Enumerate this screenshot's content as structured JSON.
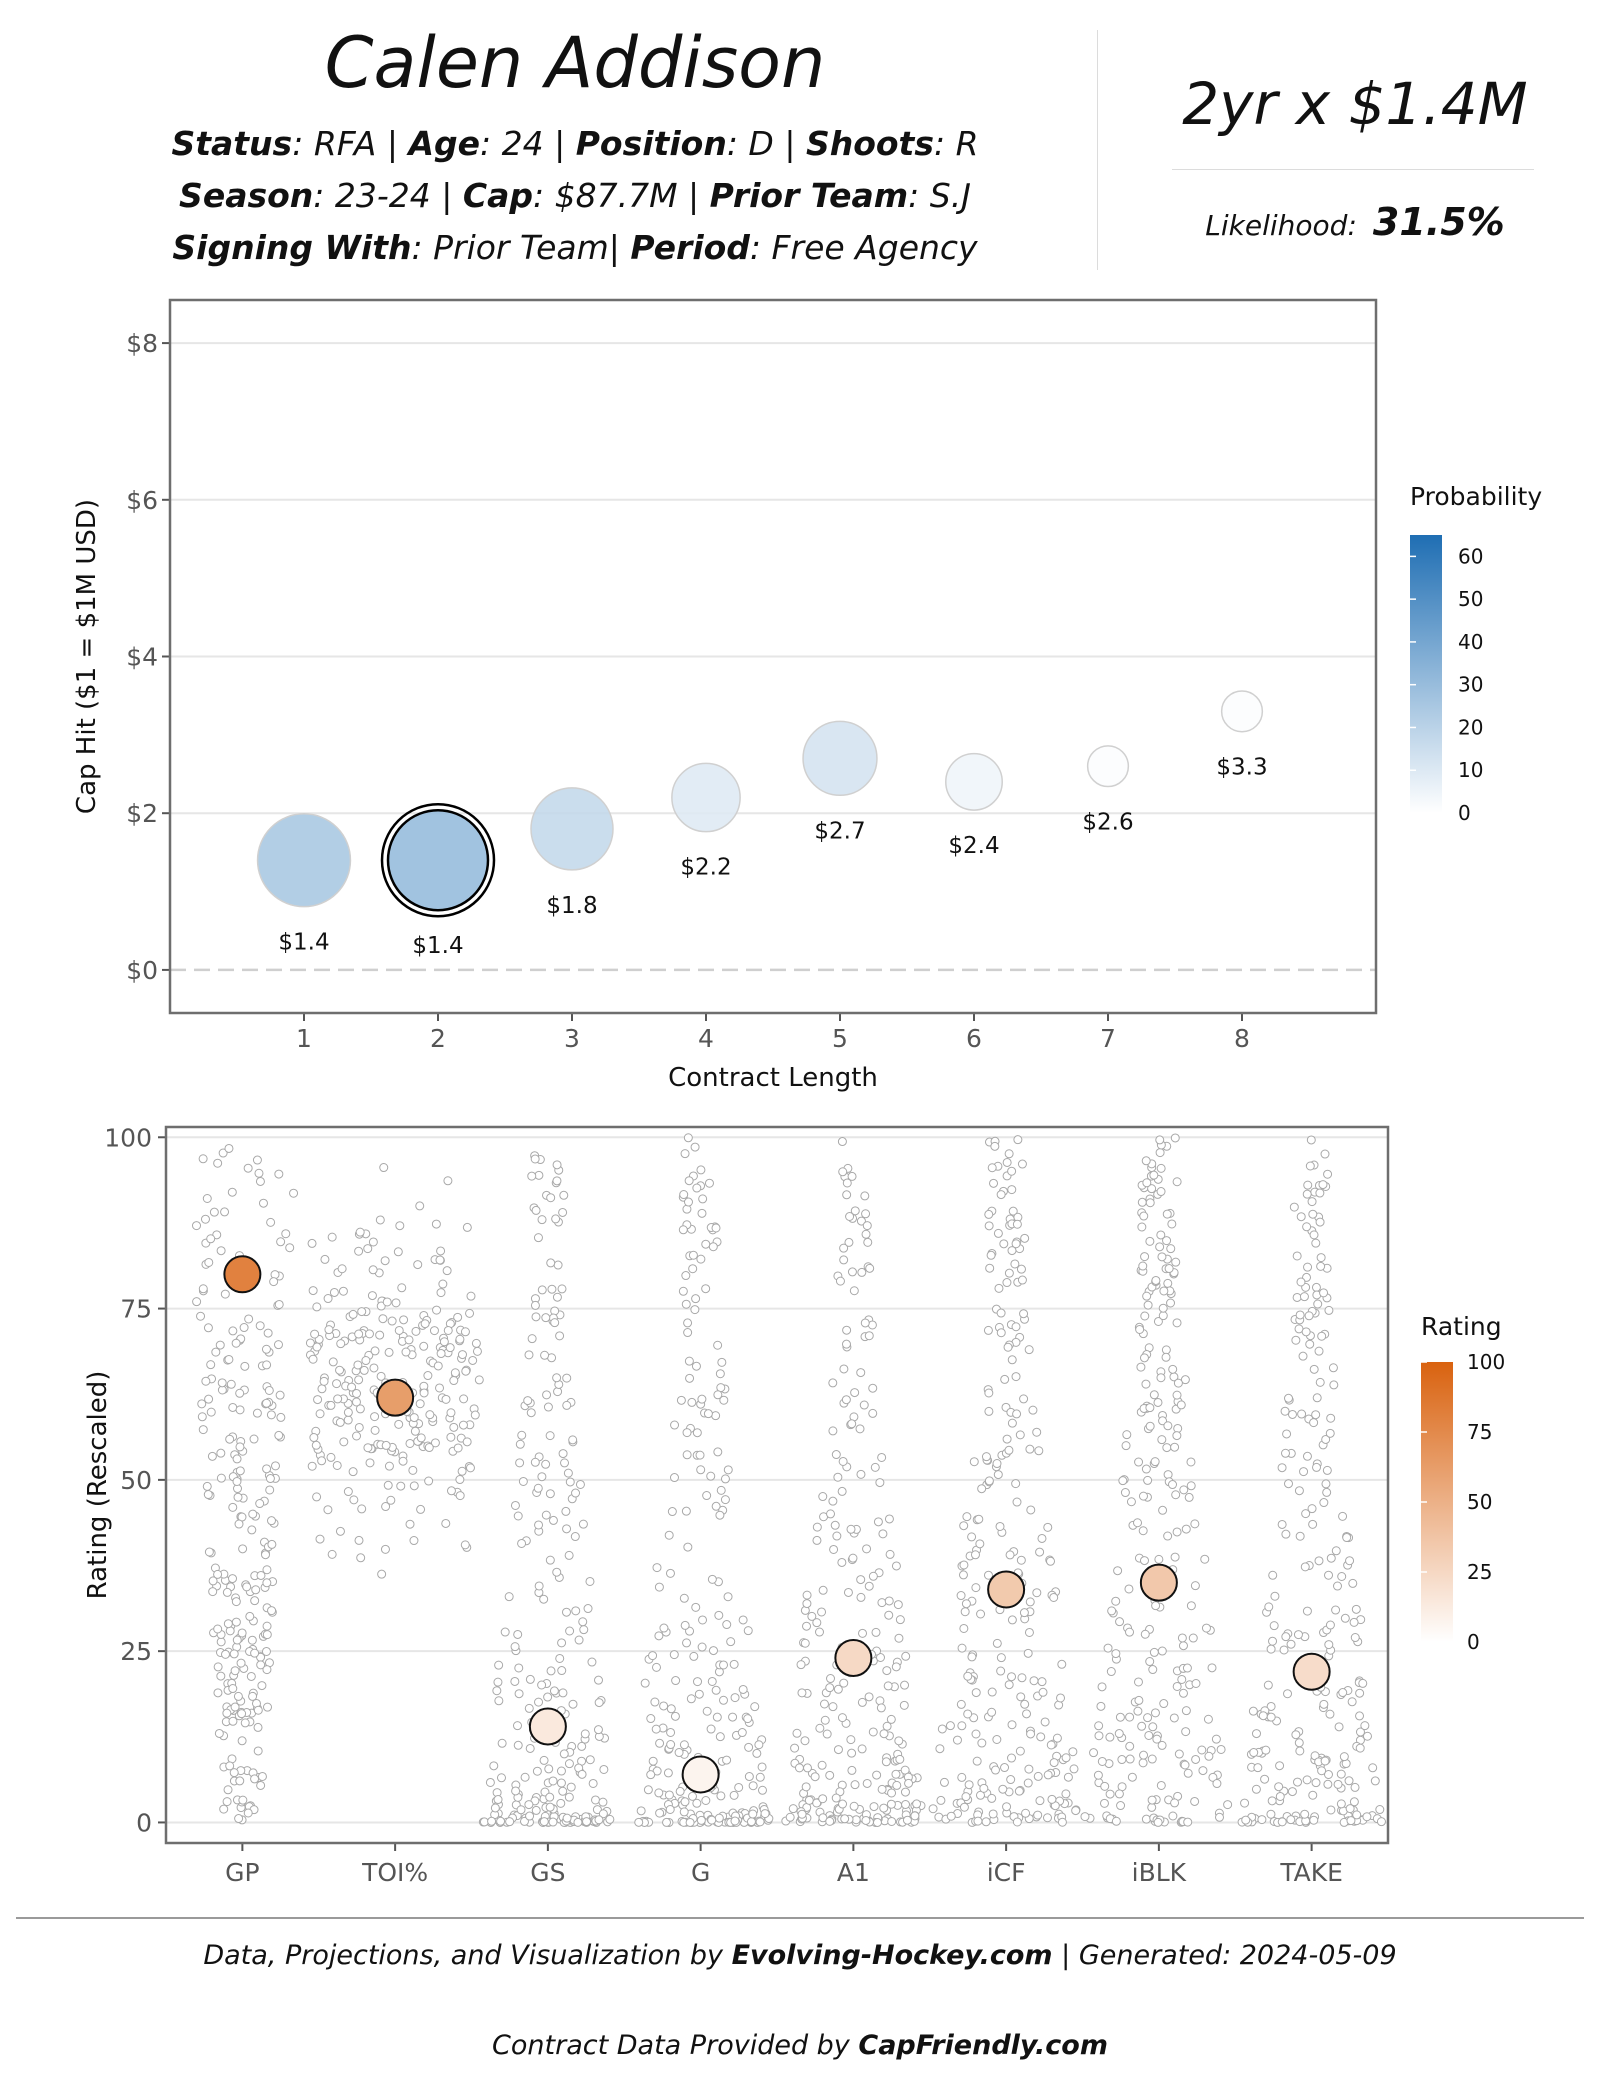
{
  "header": {
    "player_name": "Calen Addison",
    "status_label": "Status",
    "status_value": "RFA",
    "age_label": "Age",
    "age_value": "24",
    "position_label": "Position",
    "position_value": "D",
    "shoots_label": "Shoots",
    "shoots_value": "R",
    "season_label": "Season",
    "season_value": "23-24",
    "cap_label": "Cap",
    "cap_value": "$87.7M",
    "prior_team_label": "Prior Team",
    "prior_team_value": "S.J",
    "signing_label": "Signing With",
    "signing_value": "Prior Team",
    "period_label": "Period",
    "period_value": "Free Agency",
    "contract_summary": "2yr x $1.4M",
    "likelihood_label": "Likelihood:",
    "likelihood_value": "31.5%"
  },
  "footer": {
    "line1_prefix": "Data, Projections, and Visualization by ",
    "line1_brand": "Evolving-Hockey.com",
    "line1_suffix": " | Generated: 2024-05-09",
    "line2_prefix": "Contract Data Provided by ",
    "line2_brand": "CapFriendly.com"
  },
  "colors": {
    "probability_low": "#ffffff",
    "probability_high": "#1f6eb3",
    "rating_low": "#ffffff",
    "rating_high": "#d9620f",
    "grid": "#e6e6e6",
    "panel_border": "#6e6e6e"
  },
  "chart_data": [
    {
      "type": "scatter",
      "xlabel": "Contract Length",
      "ylabel": "Cap Hit ($1 = $1M USD)",
      "x": [
        1,
        2,
        3,
        4,
        5,
        6,
        7,
        8
      ],
      "y": [
        1.4,
        1.4,
        1.8,
        2.2,
        2.7,
        2.4,
        2.6,
        3.3
      ],
      "point_labels": [
        "$1.4",
        "$1.4",
        "$1.8",
        "$2.2",
        "$2.7",
        "$2.4",
        "$2.6",
        "$3.3"
      ],
      "probability": [
        26,
        32,
        18,
        10,
        13,
        5,
        1,
        1
      ],
      "highlight_index": 1,
      "xlim": [
        0,
        9
      ],
      "ylim": [
        -0.55,
        8.55
      ],
      "x_ticks": [
        1,
        2,
        3,
        4,
        5,
        6,
        7,
        8
      ],
      "y_ticks": [
        0,
        2,
        4,
        6,
        8
      ],
      "y_tick_labels": [
        "$0",
        "$2",
        "$4",
        "$6",
        "$8"
      ],
      "grid": true,
      "legend": {
        "title": "Probability",
        "placement": "right",
        "ticks": [
          0,
          10,
          20,
          30,
          40,
          50,
          60
        ],
        "max": 65
      }
    },
    {
      "type": "scatter",
      "ylabel": "Rating (Rescaled)",
      "categories": [
        "GP",
        "TOI%",
        "GS",
        "G",
        "A1",
        "iCF",
        "iBLK",
        "TAKE"
      ],
      "player_values": [
        80,
        62,
        14,
        7,
        24,
        34,
        35,
        22
      ],
      "ylim": [
        -3,
        101.5
      ],
      "y_ticks": [
        0,
        25,
        50,
        75,
        100
      ],
      "grid": true,
      "legend": {
        "title": "Rating",
        "placement": "right",
        "ticks": [
          0,
          25,
          50,
          75,
          100
        ]
      }
    }
  ]
}
